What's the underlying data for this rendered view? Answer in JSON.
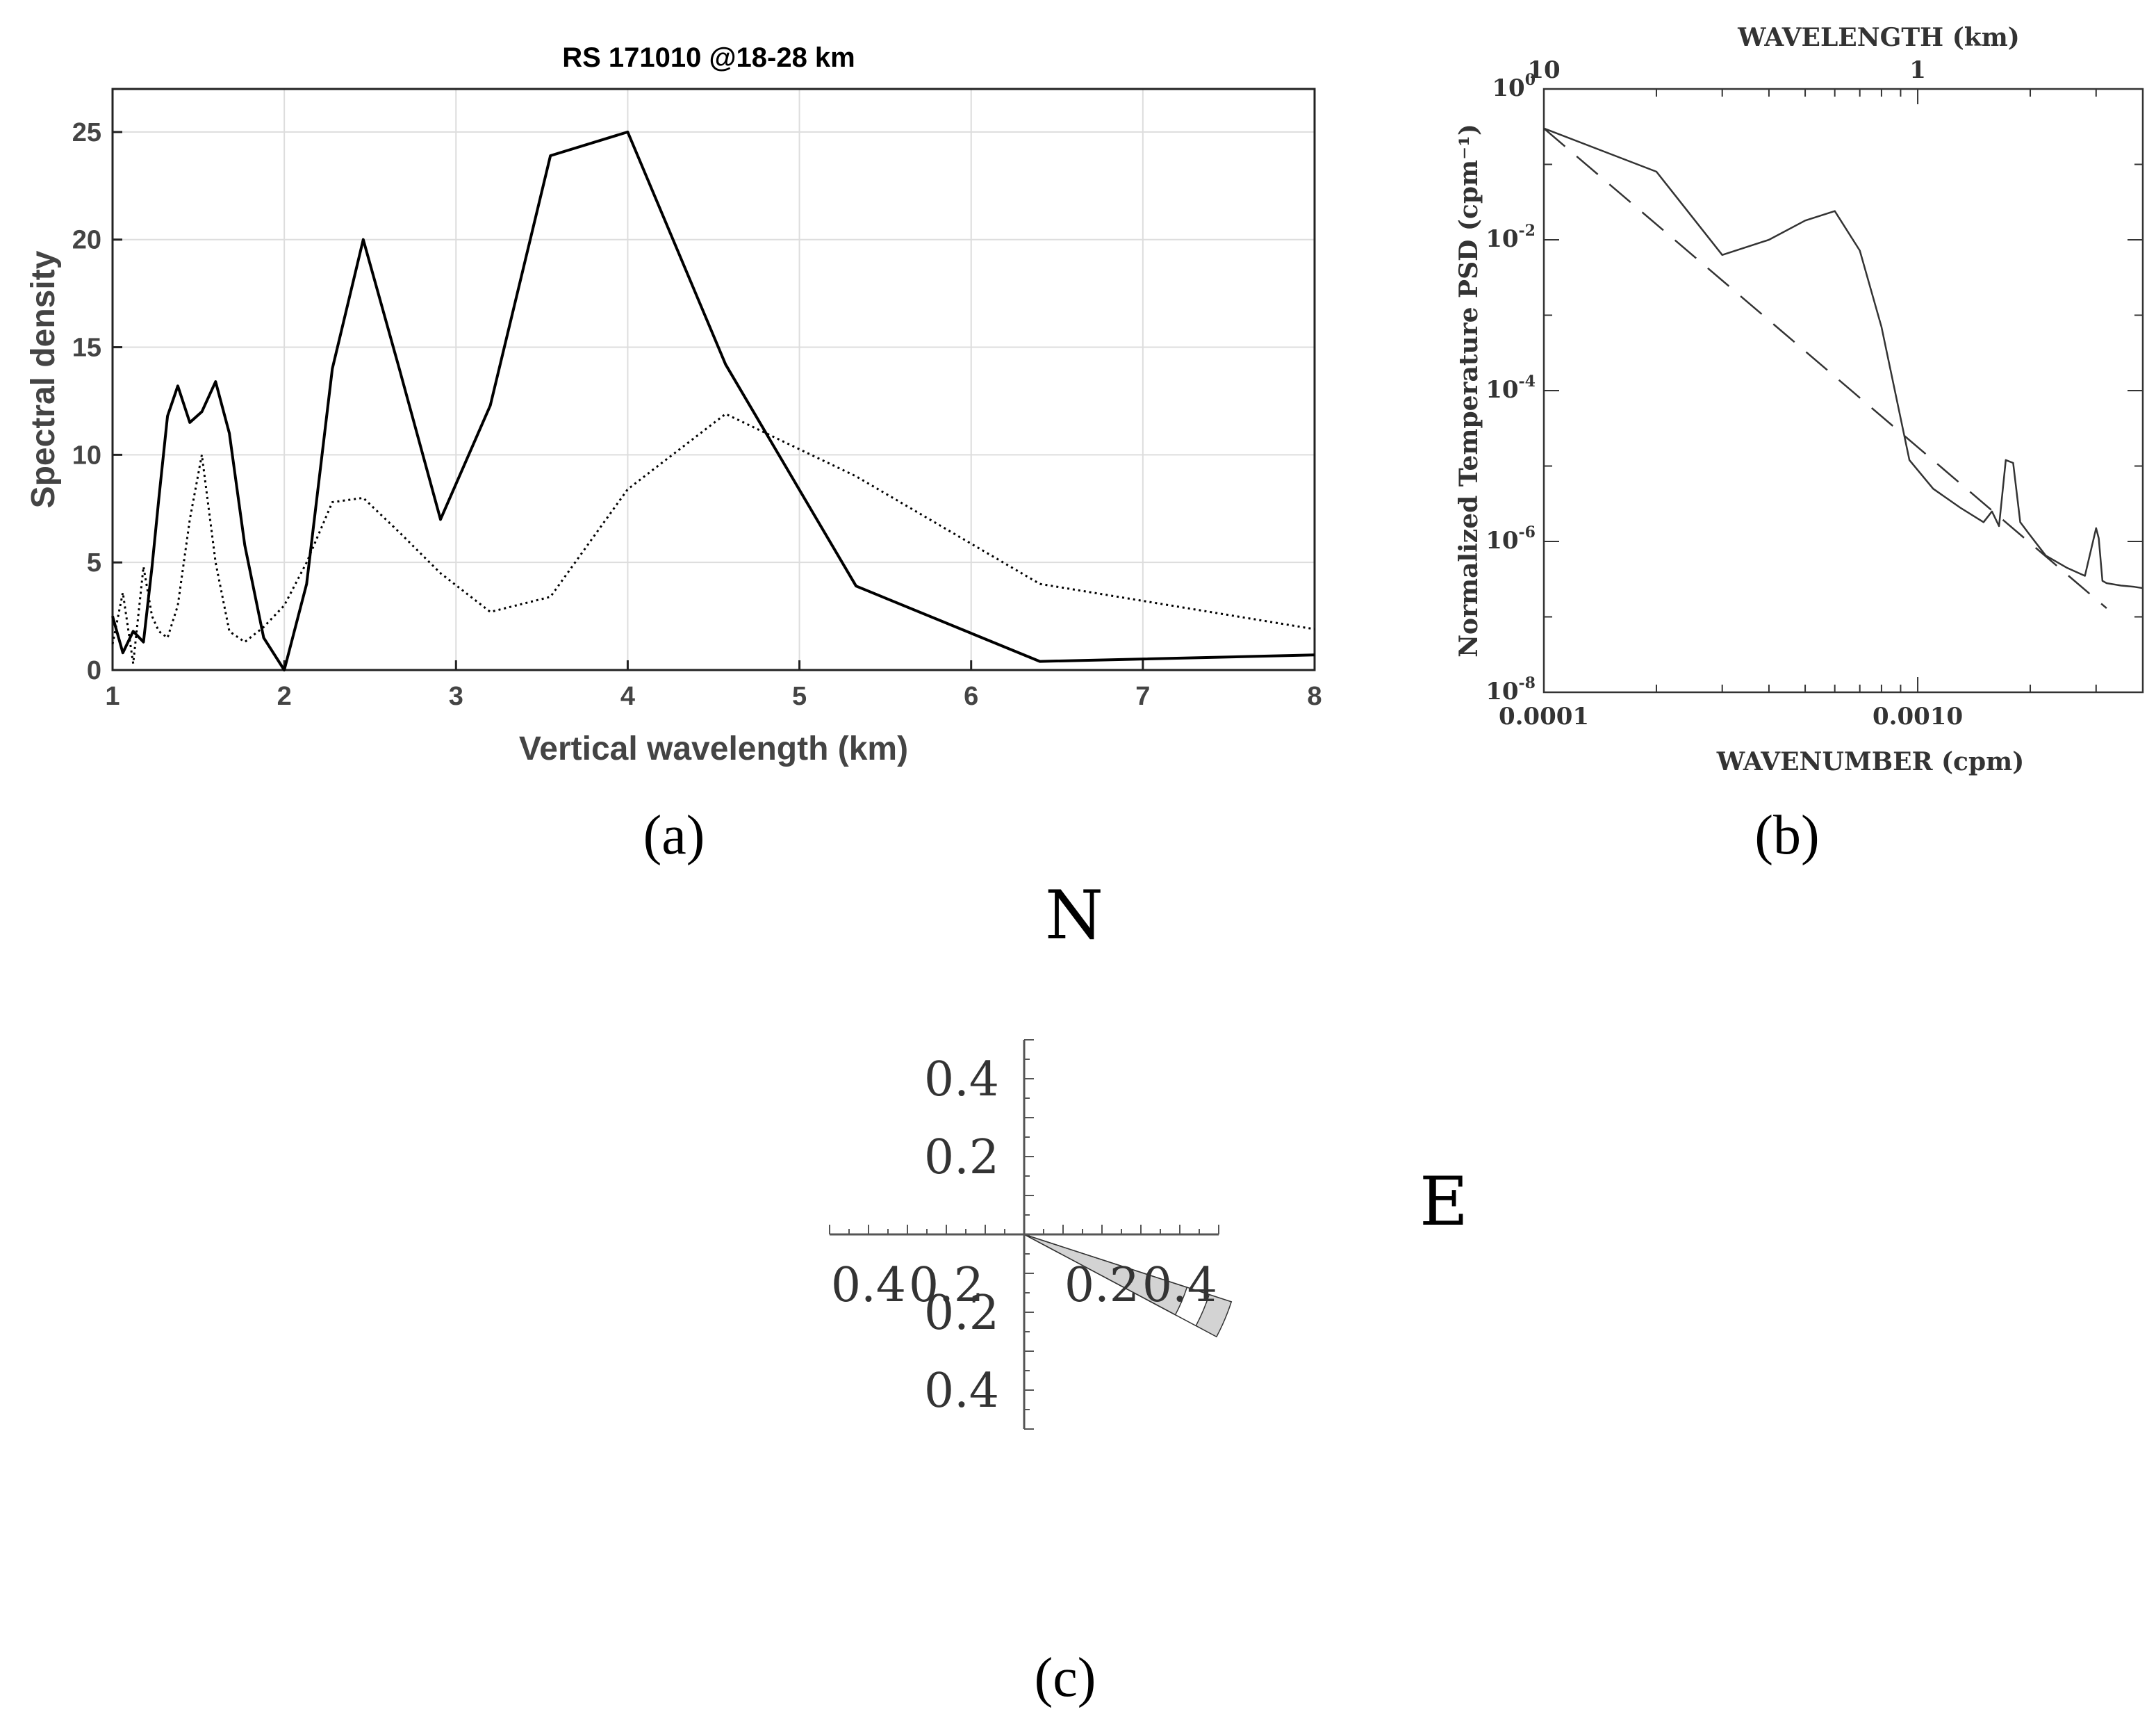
{
  "captions": {
    "a": "(a)",
    "b": "(b)",
    "c": "(c)"
  },
  "chart_data": [
    {
      "id": "a",
      "type": "line",
      "title": "RS 171010 @18-28 km",
      "xlabel": "Vertical wavelength (km)",
      "ylabel": "Spectral density",
      "xlim": [
        1,
        8
      ],
      "ylim": [
        0,
        27
      ],
      "grid": true,
      "xticks": [
        1,
        2,
        3,
        4,
        5,
        6,
        7,
        8
      ],
      "yticks": [
        0,
        5,
        10,
        15,
        20,
        25
      ],
      "series": [
        {
          "name": "solid",
          "style": "solid",
          "x": [
            1.0,
            1.06,
            1.12,
            1.18,
            1.23,
            1.27,
            1.32,
            1.38,
            1.45,
            1.52,
            1.6,
            1.68,
            1.77,
            1.88,
            2.0,
            2.13,
            2.28,
            2.46,
            2.67,
            2.91,
            3.2,
            3.55,
            4.0,
            4.57,
            5.33,
            6.4,
            8.0
          ],
          "y": [
            2.5,
            0.8,
            1.8,
            1.3,
            4.8,
            8.0,
            11.8,
            13.2,
            11.5,
            12.0,
            13.4,
            11.0,
            5.8,
            1.5,
            0.0,
            4.0,
            14.0,
            20.0,
            14.0,
            7.0,
            12.3,
            23.9,
            25.0,
            14.2,
            3.9,
            0.4,
            0.7
          ]
        },
        {
          "name": "dotted",
          "style": "dotted",
          "x": [
            1.0,
            1.06,
            1.12,
            1.18,
            1.23,
            1.27,
            1.32,
            1.38,
            1.45,
            1.52,
            1.6,
            1.68,
            1.77,
            1.88,
            2.0,
            2.13,
            2.28,
            2.46,
            2.67,
            2.91,
            3.2,
            3.55,
            4.0,
            4.57,
            5.33,
            6.4,
            8.0
          ],
          "y": [
            1.2,
            3.6,
            0.3,
            4.8,
            2.5,
            1.8,
            1.5,
            3.0,
            7.0,
            10.0,
            5.0,
            1.8,
            1.3,
            2.0,
            3.0,
            5.0,
            7.8,
            8.0,
            6.4,
            4.5,
            2.7,
            3.4,
            8.4,
            11.9,
            9.0,
            4.0,
            1.9
          ]
        }
      ]
    },
    {
      "id": "b",
      "type": "line",
      "scale": "log-log",
      "xlabel": "WAVENUMBER (cpm)",
      "ylabel": "Normalized Temperature PSD (cpm⁻¹)",
      "top_xlabel": "WAVELENGTH (km)",
      "xlim": [
        0.0001,
        0.004
      ],
      "ylim": [
        1e-08,
        1
      ],
      "xtick_labels": [
        {
          "value": 0.0001,
          "label": "0.0001"
        },
        {
          "value": 0.001,
          "label": "0.0010"
        }
      ],
      "top_xtick_labels": [
        {
          "value": 0.0001,
          "label": "10"
        },
        {
          "value": 0.001,
          "label": "1"
        }
      ],
      "ytick_labels": [
        {
          "value": 1,
          "base": "10",
          "exp": "0"
        },
        {
          "value": 0.01,
          "base": "10",
          "exp": "-2"
        },
        {
          "value": 0.0001,
          "base": "10",
          "exp": "-4"
        },
        {
          "value": 1e-06,
          "base": "10",
          "exp": "-6"
        },
        {
          "value": 1e-08,
          "base": "10",
          "exp": "-8"
        }
      ],
      "series": [
        {
          "name": "spectrum",
          "style": "solid",
          "x": [
            0.0001,
            0.0002,
            0.0003,
            0.0004,
            0.0005,
            0.0006,
            0.0007,
            0.0008,
            0.00095,
            0.0011,
            0.0013,
            0.0015,
            0.00158,
            0.00165,
            0.00172,
            0.0018,
            0.00188,
            0.002,
            0.0022,
            0.0025,
            0.0028,
            0.003,
            0.00305,
            0.00312,
            0.0032,
            0.0035,
            0.0038,
            0.004
          ],
          "y": [
            0.3,
            0.08,
            0.0063,
            0.01,
            0.018,
            0.024,
            0.0072,
            0.0007,
            1.2e-05,
            5e-06,
            2.8e-06,
            1.8e-06,
            2.5e-06,
            1.6e-06,
            1.2e-05,
            1.1e-05,
            1.8e-06,
            1.2e-06,
            6.5e-07,
            4.5e-07,
            3.5e-07,
            1.5e-06,
            1.1e-06,
            3e-07,
            2.8e-07,
            2.6e-07,
            2.5e-07,
            2.4e-07
          ]
        },
        {
          "name": "reference",
          "style": "dashed",
          "x": [
            0.0001,
            0.0032
          ],
          "y": [
            0.3,
            1.3e-07
          ]
        }
      ]
    },
    {
      "id": "c",
      "type": "polar-sector",
      "axis_labels": {
        "north": "N",
        "east": "E"
      },
      "tick_labels": {
        "left": [
          "0.4",
          "0.2"
        ],
        "right": [
          "0.2",
          "0.4"
        ],
        "up": [
          "0.4",
          "0.2"
        ],
        "down": [
          "0.2",
          "0.4"
        ]
      },
      "range": 0.5,
      "sectors": [
        {
          "name": "outer-sector",
          "radius_inner": 0.5,
          "radius_outer": 0.56,
          "angle_from_deg": -18,
          "angle_to_deg": -28
        },
        {
          "name": "inner-sector",
          "radius_inner": 0.0,
          "radius_outer": 0.44,
          "angle_from_deg": -18,
          "angle_to_deg": -28
        }
      ],
      "fill_color": "#d3d3d3"
    }
  ]
}
